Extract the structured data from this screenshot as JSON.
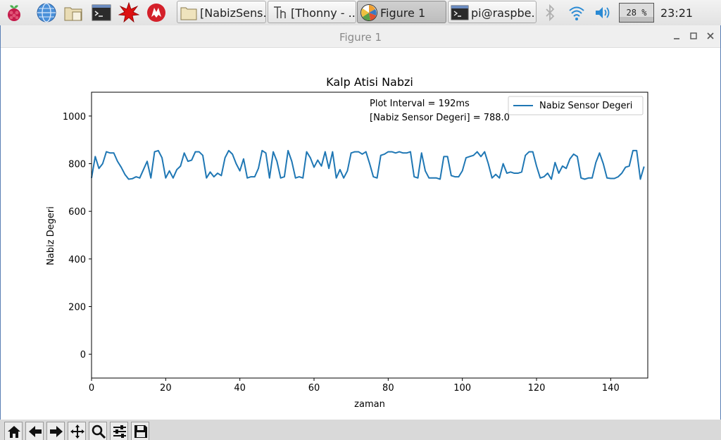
{
  "taskbar": {
    "launchers": [
      {
        "icon": "raspberry-menu-icon"
      },
      {
        "icon": "web-browser-icon"
      },
      {
        "icon": "file-manager-icon"
      },
      {
        "icon": "terminal-icon"
      },
      {
        "icon": "mathematica-icon"
      },
      {
        "icon": "wolfram-icon"
      }
    ],
    "tasks": [
      {
        "label": "[NabizSens...",
        "icon": "folder-icon",
        "active": false
      },
      {
        "label": "[Thonny  -  ...",
        "icon": "thonny-icon",
        "active": false
      },
      {
        "label": "Figure 1",
        "icon": "matplotlib-icon",
        "active": true
      },
      {
        "label": "pi@raspbe...",
        "icon": "terminal-icon",
        "active": false
      }
    ],
    "tray": {
      "bluetooth_icon": "bluetooth-icon",
      "wifi_icon": "wifi-icon",
      "volume_icon": "volume-icon",
      "cpu_usage": "28 %",
      "cpu_fraction": 0.28,
      "clock": "23:21"
    }
  },
  "window": {
    "title": "Figure 1",
    "buttons": [
      "minimize-icon",
      "maximize-icon",
      "close-icon"
    ]
  },
  "chart_data": {
    "type": "line",
    "title": "Kalp Atisi Nabzi",
    "xlabel": "zaman",
    "ylabel": "Nabiz Degeri",
    "xlim": [
      0,
      150
    ],
    "ylim": [
      -100,
      1100
    ],
    "xticks": [
      0,
      20,
      40,
      60,
      80,
      100,
      120,
      140
    ],
    "yticks": [
      0,
      200,
      400,
      600,
      800,
      1000
    ],
    "grid": false,
    "legend": "top-right",
    "annotations": [
      "Plot Interval = 192ms",
      "[Nabiz Sensor Degeri] = 788.0"
    ],
    "series": [
      {
        "name": "Nabiz Sensor Degeri",
        "color": "#1f77b4",
        "x": [
          0,
          1,
          2,
          3,
          4,
          5,
          6,
          7,
          8,
          9,
          10,
          11,
          12,
          13,
          14,
          15,
          16,
          17,
          18,
          19,
          20,
          21,
          22,
          23,
          24,
          25,
          26,
          27,
          28,
          29,
          30,
          31,
          32,
          33,
          34,
          35,
          36,
          37,
          38,
          39,
          40,
          41,
          42,
          43,
          44,
          45,
          46,
          47,
          48,
          49,
          50,
          51,
          52,
          53,
          54,
          55,
          56,
          57,
          58,
          59,
          60,
          61,
          62,
          63,
          64,
          65,
          66,
          67,
          68,
          69,
          70,
          71,
          72,
          73,
          74,
          75,
          76,
          77,
          78,
          79,
          80,
          81,
          82,
          83,
          84,
          85,
          86,
          87,
          88,
          89,
          90,
          91,
          92,
          93,
          94,
          95,
          96,
          97,
          98,
          99,
          100,
          101,
          102,
          103,
          104,
          105,
          106,
          107,
          108,
          109,
          110,
          111,
          112,
          113,
          114,
          115,
          116,
          117,
          118,
          119,
          120,
          121,
          122,
          123,
          124,
          125,
          126,
          127,
          128,
          129,
          130,
          131,
          132,
          133,
          134,
          135,
          136,
          137,
          138,
          139,
          140,
          141,
          142,
          143,
          144,
          145,
          146,
          147,
          148,
          149
        ],
        "y": [
          740,
          830,
          780,
          800,
          850,
          845,
          845,
          810,
          785,
          755,
          735,
          737,
          745,
          740,
          775,
          810,
          740,
          850,
          855,
          825,
          740,
          770,
          740,
          775,
          790,
          845,
          810,
          815,
          850,
          850,
          835,
          740,
          765,
          745,
          760,
          750,
          825,
          855,
          840,
          800,
          770,
          820,
          740,
          745,
          745,
          780,
          855,
          845,
          740,
          850,
          810,
          740,
          745,
          855,
          810,
          740,
          745,
          740,
          850,
          825,
          785,
          815,
          790,
          850,
          780,
          850,
          740,
          775,
          740,
          770,
          845,
          850,
          850,
          840,
          850,
          800,
          745,
          740,
          835,
          840,
          850,
          850,
          845,
          850,
          845,
          845,
          850,
          745,
          740,
          845,
          770,
          740,
          740,
          740,
          735,
          830,
          830,
          750,
          745,
          745,
          770,
          825,
          830,
          835,
          850,
          830,
          850,
          800,
          740,
          755,
          740,
          800,
          760,
          765,
          760,
          760,
          765,
          835,
          850,
          850,
          790,
          740,
          745,
          760,
          735,
          805,
          760,
          790,
          780,
          820,
          840,
          830,
          740,
          735,
          740,
          740,
          805,
          845,
          800,
          740,
          738,
          738,
          745,
          760,
          785,
          790,
          855,
          855,
          735,
          788
        ]
      }
    ]
  },
  "toolbar": {
    "buttons": [
      {
        "icon": "home-icon"
      },
      {
        "icon": "back-arrow-icon"
      },
      {
        "icon": "forward-arrow-icon"
      },
      {
        "icon": "pan-icon"
      },
      {
        "icon": "zoom-icon"
      },
      {
        "icon": "subplots-config-icon"
      },
      {
        "icon": "save-icon"
      }
    ]
  }
}
